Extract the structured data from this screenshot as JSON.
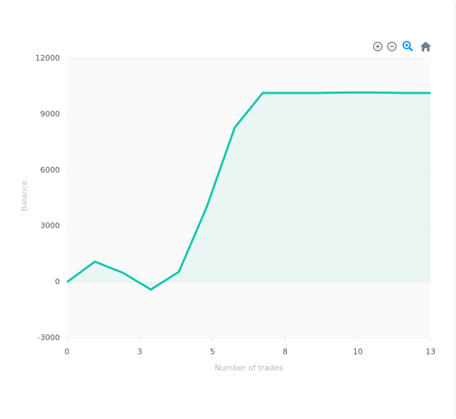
{
  "chart_data": {
    "type": "area",
    "x": [
      0,
      1,
      2,
      3,
      4,
      5,
      6,
      7,
      8,
      9,
      10,
      11,
      12,
      13
    ],
    "values": [
      0,
      1100,
      500,
      -400,
      550,
      4050,
      8300,
      10150,
      10150,
      10150,
      10170,
      10170,
      10150,
      10150
    ],
    "color": "#13c4ae",
    "xlim": [
      0,
      13
    ],
    "xticks": [
      0,
      {
        "value": 2.6,
        "label": "3"
      },
      {
        "value": 5.2,
        "label": "5"
      },
      {
        "value": 7.8,
        "label": "8"
      },
      {
        "value": 10.4,
        "label": "10"
      },
      13
    ],
    "ylim": [
      -3000,
      12000
    ],
    "yticks": [
      -3000,
      0,
      3000,
      6000,
      9000,
      12000
    ],
    "xlabel": "Number of trades",
    "ylabel": "Balance",
    "grid": true
  }
}
